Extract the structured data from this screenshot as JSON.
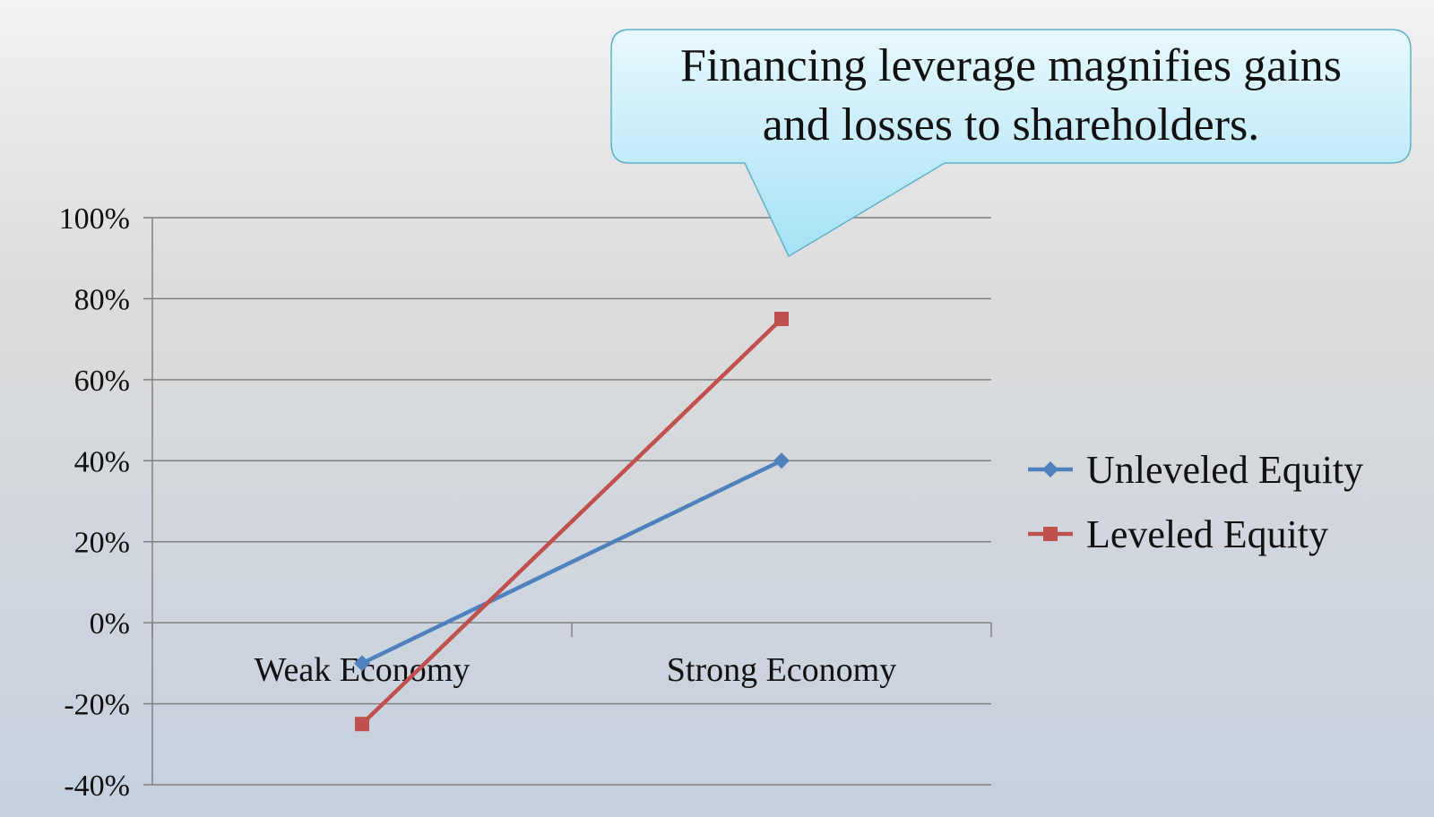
{
  "callout": {
    "line1": "Financing leverage magnifies gains",
    "line2": "and losses to shareholders."
  },
  "colors": {
    "unleveled": "#4f81bd",
    "leveled": "#c0504d",
    "grid": "#808080",
    "callout_fill_top": "#e6f7fd",
    "callout_fill_bottom": "#a9e4f7",
    "callout_stroke": "#5fb2c9"
  },
  "chart_data": {
    "type": "line",
    "categories": [
      "Weak Economy",
      "Strong Economy"
    ],
    "series": [
      {
        "name": "Unleveled Equity",
        "values": [
          -10,
          40
        ],
        "marker": "diamond"
      },
      {
        "name": "Leveled Equity",
        "values": [
          -25,
          75
        ],
        "marker": "square"
      }
    ],
    "y_ticks": [
      "100%",
      "80%",
      "60%",
      "40%",
      "20%",
      "0%",
      "-20%",
      "-40%"
    ],
    "y_tick_values": [
      100,
      80,
      60,
      40,
      20,
      0,
      -20,
      -40
    ],
    "ylim": [
      -40,
      100
    ],
    "grid": true,
    "legend_position": "right"
  }
}
